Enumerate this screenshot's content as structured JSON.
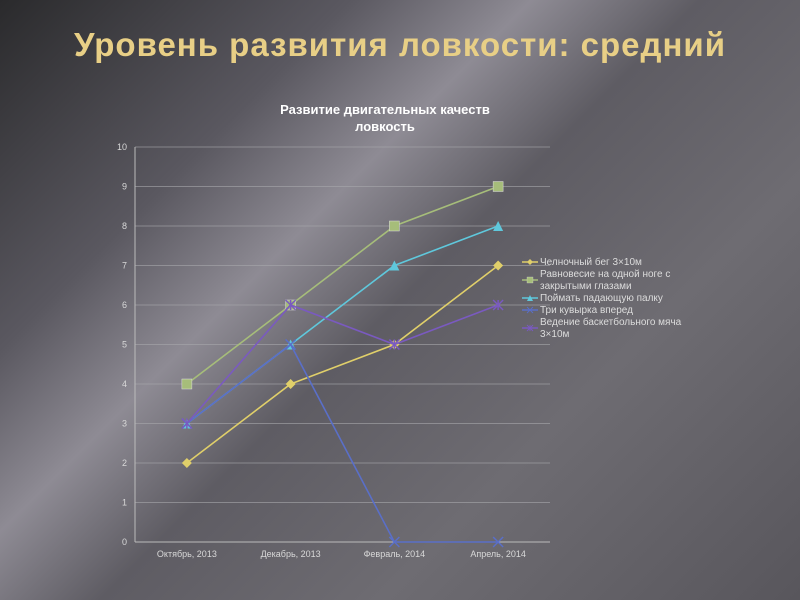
{
  "slide": {
    "title": "Уровень развития ловкости: средний"
  },
  "chart_data": {
    "type": "line",
    "title": [
      "Развитие двигательных качеств",
      "ловкость"
    ],
    "categories": [
      "Октябрь, 2013",
      "Декабрь, 2013",
      "Февраль, 2014",
      "Апрель, 2014"
    ],
    "ylim": [
      0,
      10
    ],
    "yticks": [
      0,
      1,
      2,
      3,
      4,
      5,
      6,
      7,
      8,
      9,
      10
    ],
    "grid": true,
    "legend": "right",
    "series": [
      {
        "name": "Челночный бег 3×10м",
        "legend_lines": [
          "Челночный бег 3×10м"
        ],
        "values": [
          2,
          4,
          5,
          7
        ],
        "color": "#e0cf6a",
        "marker": "diamond"
      },
      {
        "name": "Равновесие на одной ноге с закрытыми глазами",
        "legend_lines": [
          "Равновесие на одной ноге с",
          "закрытыми глазами"
        ],
        "values": [
          4,
          6,
          8,
          9
        ],
        "color": "#a6bd7a",
        "marker": "square"
      },
      {
        "name": "Поймать падающую палку",
        "legend_lines": [
          "Поймать падающую палку"
        ],
        "values": [
          3,
          5,
          7,
          8
        ],
        "color": "#5fc8dc",
        "marker": "triangle"
      },
      {
        "name": "Три кувырка вперед",
        "legend_lines": [
          "Три кувырка вперед"
        ],
        "values": [
          3,
          5,
          0,
          0
        ],
        "color": "#5a6fc8",
        "marker": "x"
      },
      {
        "name": "Ведение баскетбольного мяча 3×10м",
        "legend_lines": [
          "Ведение баскетбольного мяча",
          "3×10м"
        ],
        "values": [
          3,
          6,
          5,
          6
        ],
        "color": "#7a5ac0",
        "marker": "star"
      }
    ]
  }
}
